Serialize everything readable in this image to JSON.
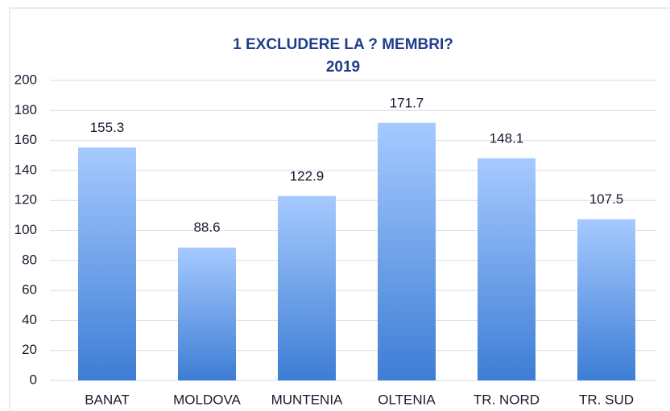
{
  "chart_data": {
    "type": "bar",
    "title": "1 EXCLUDERE LA ? MEMBRI?",
    "subtitle": "2019",
    "categories": [
      "BANAT",
      "MOLDOVA",
      "MUNTENIA",
      "OLTENIA",
      "TR. NORD",
      "TR. SUD"
    ],
    "values": [
      155.3,
      88.6,
      122.9,
      171.7,
      148.1,
      107.5
    ],
    "gradient": [
      "#a6caff",
      "#3d7dd5"
    ],
    "ylim": [
      0,
      200
    ],
    "yticks": [
      0,
      20,
      40,
      60,
      80,
      100,
      120,
      140,
      160,
      180,
      200
    ],
    "grid": true
  }
}
